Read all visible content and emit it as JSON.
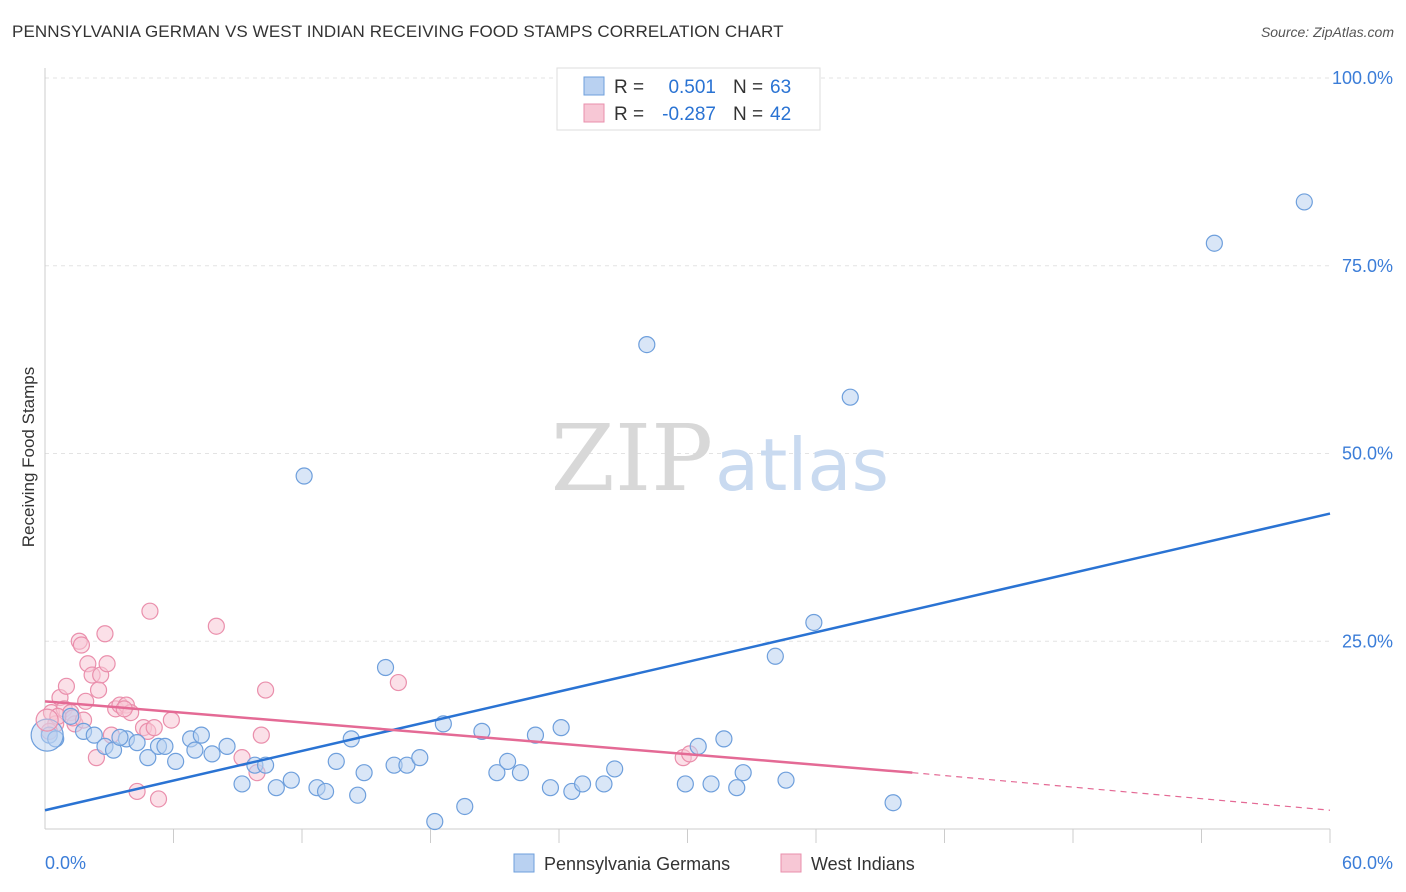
{
  "chart_data": {
    "type": "scatter",
    "title": "PENNSYLVANIA GERMAN VS WEST INDIAN RECEIVING FOOD STAMPS CORRELATION CHART",
    "source": "Source: ZipAtlas.com",
    "xlabel": "",
    "ylabel": "Receiving Food Stamps",
    "xlim": [
      0,
      60
    ],
    "ylim": [
      0,
      100
    ],
    "x_tick_labels": [
      "0.0%",
      "60.0%"
    ],
    "y_ticks": [
      25,
      50,
      75,
      100
    ],
    "y_tick_labels": [
      "25.0%",
      "50.0%",
      "75.0%",
      "100.0%"
    ],
    "grid": true,
    "watermark": {
      "part1": "ZIP",
      "part2": "atlas"
    },
    "legend_stats": [
      {
        "r_label": "R =",
        "r_value": "0.501",
        "n_label": "N =",
        "n_value": "63"
      },
      {
        "r_label": "R =",
        "r_value": "-0.287",
        "n_label": "N =",
        "n_value": "42"
      }
    ],
    "series": [
      {
        "name": "Pennsylvania Germans",
        "color": "#6e9fdc",
        "fill": "#b9d1f1",
        "trend_color": "#2a73d3",
        "trend": {
          "x0": 0,
          "y0": 2.5,
          "x1": 60,
          "y1": 42.0
        },
        "points": [
          [
            0.2,
            12.5
          ],
          [
            0.5,
            12.0
          ],
          [
            1.2,
            15.0
          ],
          [
            1.8,
            13.0
          ],
          [
            2.3,
            12.5
          ],
          [
            2.8,
            11.0
          ],
          [
            3.2,
            10.5
          ],
          [
            3.8,
            12.0
          ],
          [
            4.3,
            11.5
          ],
          [
            4.8,
            9.5
          ],
          [
            5.3,
            11.0
          ],
          [
            5.6,
            11.0
          ],
          [
            6.1,
            9.0
          ],
          [
            6.8,
            12.0
          ],
          [
            7.3,
            12.5
          ],
          [
            7.8,
            10.0
          ],
          [
            8.5,
            11.0
          ],
          [
            9.2,
            6.0
          ],
          [
            9.8,
            8.5
          ],
          [
            10.3,
            8.5
          ],
          [
            10.8,
            5.5
          ],
          [
            11.5,
            6.5
          ],
          [
            12.1,
            47.0
          ],
          [
            12.7,
            5.5
          ],
          [
            13.1,
            5.0
          ],
          [
            13.6,
            9.0
          ],
          [
            14.3,
            12.0
          ],
          [
            14.6,
            4.5
          ],
          [
            14.9,
            7.5
          ],
          [
            15.9,
            21.5
          ],
          [
            16.3,
            8.5
          ],
          [
            16.9,
            8.5
          ],
          [
            17.5,
            9.5
          ],
          [
            18.2,
            1.0
          ],
          [
            18.6,
            14.0
          ],
          [
            19.6,
            3.0
          ],
          [
            20.4,
            13.0
          ],
          [
            21.1,
            7.5
          ],
          [
            21.6,
            9.0
          ],
          [
            22.2,
            7.5
          ],
          [
            22.9,
            12.5
          ],
          [
            23.6,
            5.5
          ],
          [
            24.1,
            13.5
          ],
          [
            24.6,
            5.0
          ],
          [
            25.1,
            6.0
          ],
          [
            26.1,
            6.0
          ],
          [
            26.6,
            8.0
          ],
          [
            28.1,
            64.5
          ],
          [
            29.9,
            6.0
          ],
          [
            31.1,
            6.0
          ],
          [
            31.7,
            12.0
          ],
          [
            32.3,
            5.5
          ],
          [
            32.6,
            7.5
          ],
          [
            34.1,
            23.0
          ],
          [
            34.6,
            6.5
          ],
          [
            35.9,
            27.5
          ],
          [
            37.6,
            57.5
          ],
          [
            39.6,
            3.5
          ],
          [
            58.8,
            83.5
          ],
          [
            54.6,
            78.0
          ],
          [
            30.5,
            11.0
          ],
          [
            7.0,
            10.5
          ],
          [
            3.5,
            12.2
          ]
        ]
      },
      {
        "name": "West Indians",
        "color": "#ea8fac",
        "fill": "#f7c7d5",
        "trend_color": "#e46a95",
        "trend": {
          "x0": 0,
          "y0": 17.0,
          "x1": 40.5,
          "y1": 7.5
        },
        "trend_dashed": {
          "x0": 40.5,
          "y0": 7.5,
          "x1": 60,
          "y1": 2.5
        },
        "points": [
          [
            0.3,
            15.5
          ],
          [
            0.5,
            14.0
          ],
          [
            0.7,
            17.5
          ],
          [
            0.9,
            16.0
          ],
          [
            1.0,
            19.0
          ],
          [
            1.2,
            15.5
          ],
          [
            1.4,
            14.0
          ],
          [
            1.6,
            25.0
          ],
          [
            1.7,
            24.5
          ],
          [
            1.9,
            17.0
          ],
          [
            2.0,
            22.0
          ],
          [
            2.2,
            20.5
          ],
          [
            2.4,
            9.5
          ],
          [
            2.6,
            20.5
          ],
          [
            2.8,
            26.0
          ],
          [
            2.9,
            22.0
          ],
          [
            3.1,
            12.5
          ],
          [
            3.3,
            16.0
          ],
          [
            3.5,
            16.5
          ],
          [
            3.8,
            16.5
          ],
          [
            4.0,
            15.5
          ],
          [
            4.3,
            5.0
          ],
          [
            4.6,
            13.5
          ],
          [
            4.8,
            13.0
          ],
          [
            4.9,
            29.0
          ],
          [
            5.1,
            13.5
          ],
          [
            5.3,
            4.0
          ],
          [
            5.9,
            14.5
          ],
          [
            8.0,
            27.0
          ],
          [
            9.2,
            9.5
          ],
          [
            9.9,
            7.5
          ],
          [
            10.1,
            12.5
          ],
          [
            10.3,
            18.5
          ],
          [
            16.5,
            19.5
          ],
          [
            29.8,
            9.5
          ],
          [
            30.1,
            10.0
          ],
          [
            0.2,
            13.0
          ],
          [
            1.3,
            14.8
          ],
          [
            2.5,
            18.5
          ],
          [
            3.7,
            16.0
          ],
          [
            0.6,
            15.0
          ],
          [
            1.8,
            14.5
          ]
        ]
      }
    ]
  }
}
